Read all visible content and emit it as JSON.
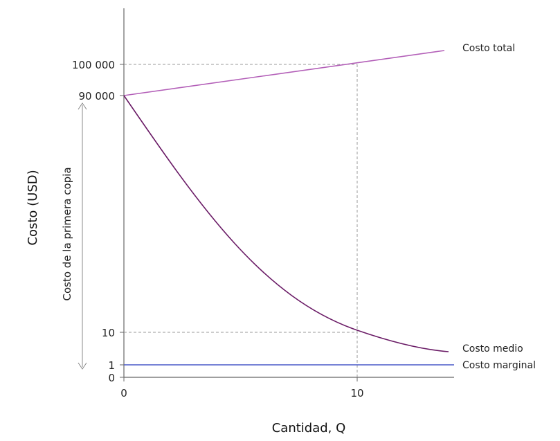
{
  "chart_data": {
    "type": "line",
    "xlabel": "Cantidad, Q",
    "ylabel": "Costo (USD)",
    "x_ticks": [
      {
        "value": 0,
        "label": "0"
      },
      {
        "value": 10,
        "label": "10"
      }
    ],
    "y_ticks": [
      {
        "label": "100 000"
      },
      {
        "label": "90 000"
      },
      {
        "label": "10"
      },
      {
        "label": "1"
      },
      {
        "label": "0"
      }
    ],
    "series": [
      {
        "name": "Costo total",
        "color": "#b35fb8",
        "x": [
          0,
          14
        ],
        "values": [
          90000,
          104000
        ]
      },
      {
        "name": "Costo medio",
        "color": "#6a1b66",
        "x": [
          0,
          14
        ],
        "values": [
          "≈90 000 (extremo)",
          "≈7"
        ]
      },
      {
        "name": "Costo marginal",
        "color": "#4a5ac8",
        "x": [
          0,
          14
        ],
        "values": [
          1,
          1
        ]
      }
    ],
    "reference_points": [
      {
        "x": 10,
        "y": 100000,
        "series": "Costo total"
      },
      {
        "x": 10,
        "y": 10,
        "series": "Costo medio"
      }
    ],
    "annotation": {
      "text": "Costo de la primera copia",
      "from": 0,
      "to": 90000
    },
    "axis_color": "#666666",
    "guide_color": "#999999",
    "grid": false
  }
}
